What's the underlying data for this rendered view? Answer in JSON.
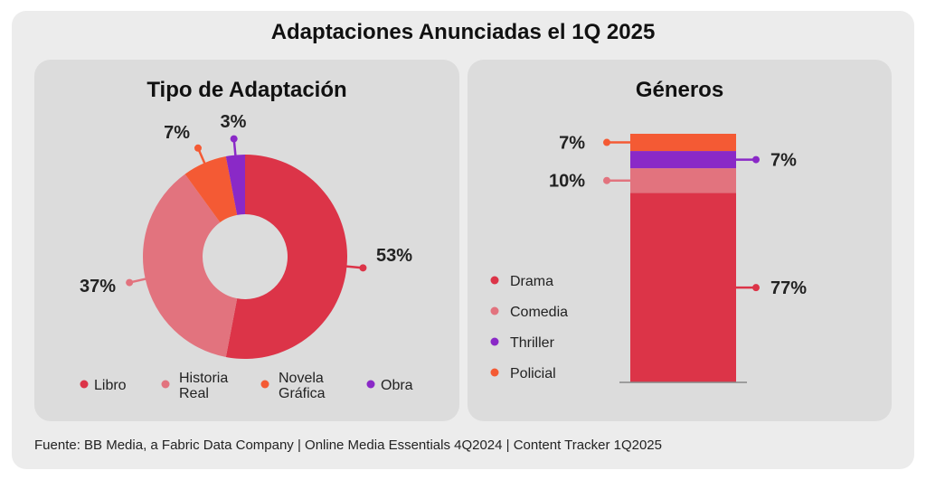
{
  "title": "Adaptaciones Anunciadas el 1Q 2025",
  "source": "Fuente: BB Media, a Fabric Data Company | Online Media Essentials 4Q2024 | Content Tracker 1Q2025",
  "chart_data": [
    {
      "type": "pie",
      "title": "Tipo de Adaptación",
      "donut": true,
      "legend_position": "bottom",
      "slices": [
        {
          "label": [
            "Libro"
          ],
          "value": 53,
          "value_label": "53%",
          "color": "#dc3448"
        },
        {
          "label": [
            "Historia",
            "Real"
          ],
          "value": 37,
          "value_label": "37%",
          "color": "#e2737e"
        },
        {
          "label": [
            "Novela",
            "Gráfica"
          ],
          "value": 7,
          "value_label": "7%",
          "color": "#f45a34"
        },
        {
          "label": [
            "Obra"
          ],
          "value": 3,
          "value_label": "3%",
          "color": "#8a29c7"
        }
      ]
    },
    {
      "type": "bar",
      "stacked": true,
      "title": "Géneros",
      "legend_position": "left",
      "series": [
        {
          "name": "Drama",
          "value": 77,
          "value_label": "77%",
          "color": "#dc3448"
        },
        {
          "name": "Comedia",
          "value": 10,
          "value_label": "10%",
          "color": "#e2737e"
        },
        {
          "name": "Thriller",
          "value": 7,
          "value_label": "7%",
          "color": "#8a29c7"
        },
        {
          "name": "Policial",
          "value": 7,
          "value_label": "7%",
          "color": "#f45a34"
        }
      ]
    }
  ]
}
